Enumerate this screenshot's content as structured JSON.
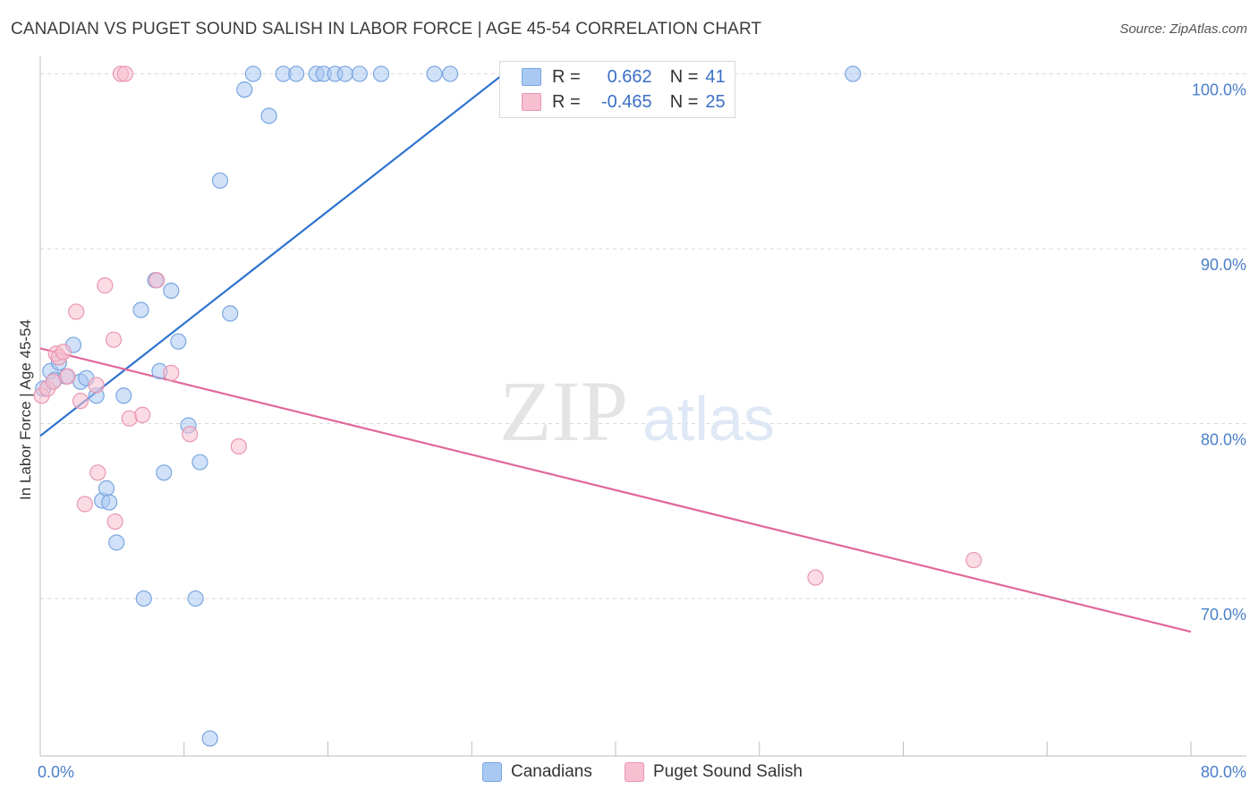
{
  "title": "CANADIAN VS PUGET SOUND SALISH IN LABOR FORCE | AGE 45-54 CORRELATION CHART",
  "source": "Source: ZipAtlas.com",
  "watermark": {
    "zip": "ZIP",
    "atlas": "atlas"
  },
  "colors": {
    "blue_fill": "#a9c8f2",
    "blue_stroke": "#7aa6e0",
    "blue_line": "#2f73d0",
    "pink_fill": "#f7bfd0",
    "pink_stroke": "#ea96b0",
    "pink_line": "#e0689a",
    "grid": "#d9d9d9",
    "tick_text": "#4a7fc8"
  },
  "legend": {
    "rows": [
      {
        "r_label": "R =",
        "r_value": "0.662",
        "n_label": "N =",
        "n_value": "41"
      },
      {
        "r_label": "R =",
        "r_value": "-0.465",
        "n_label": "N =",
        "n_value": "25"
      }
    ]
  },
  "bottom_legend": {
    "series1": "Canadians",
    "series2": "Puget Sound Salish"
  },
  "chart_data": {
    "type": "scatter",
    "title": "CANADIAN VS PUGET SOUND SALISH IN LABOR FORCE | AGE 45-54 CORRELATION CHART",
    "xlabel": "",
    "ylabel": "In Labor Force | Age 45-54",
    "xlim": [
      0,
      80
    ],
    "ylim": [
      61,
      101
    ],
    "x_tick_labels": [
      "0.0%",
      "80.0%"
    ],
    "y_ticks": [
      70,
      80,
      90,
      100
    ],
    "y_tick_labels": [
      "70.0%",
      "80.0%",
      "90.0%",
      "100.0%"
    ],
    "series": [
      {
        "name": "Canadians",
        "R": 0.662,
        "N": 41,
        "trend": {
          "x": [
            0,
            33
          ],
          "y": [
            79.3,
            100.5
          ]
        },
        "points": [
          [
            0.2,
            82.0
          ],
          [
            0.7,
            83.0
          ],
          [
            1.0,
            82.5
          ],
          [
            1.3,
            83.5
          ],
          [
            1.8,
            82.7
          ],
          [
            2.3,
            84.5
          ],
          [
            2.8,
            82.4
          ],
          [
            3.2,
            82.6
          ],
          [
            3.9,
            81.6
          ],
          [
            4.3,
            75.6
          ],
          [
            4.6,
            76.3
          ],
          [
            4.8,
            75.5
          ],
          [
            5.3,
            73.2
          ],
          [
            5.8,
            81.6
          ],
          [
            7.0,
            86.5
          ],
          [
            7.2,
            70.0
          ],
          [
            8.0,
            88.2
          ],
          [
            8.3,
            83.0
          ],
          [
            8.6,
            77.2
          ],
          [
            9.1,
            87.6
          ],
          [
            9.6,
            84.7
          ],
          [
            10.3,
            79.9
          ],
          [
            10.8,
            70.0
          ],
          [
            11.1,
            77.8
          ],
          [
            11.8,
            62.0
          ],
          [
            12.5,
            93.9
          ],
          [
            13.2,
            86.3
          ],
          [
            14.2,
            99.1
          ],
          [
            14.8,
            100.0
          ],
          [
            15.9,
            97.6
          ],
          [
            16.9,
            100.0
          ],
          [
            17.8,
            100.0
          ],
          [
            19.2,
            100.0
          ],
          [
            19.7,
            100.0
          ],
          [
            20.5,
            100.0
          ],
          [
            21.2,
            100.0
          ],
          [
            22.2,
            100.0
          ],
          [
            23.7,
            100.0
          ],
          [
            27.4,
            100.0
          ],
          [
            28.5,
            100.0
          ],
          [
            56.5,
            100.0
          ]
        ]
      },
      {
        "name": "Puget Sound Salish",
        "R": -0.465,
        "N": 25,
        "trend": {
          "x": [
            0,
            80
          ],
          "y": [
            84.3,
            68.1
          ]
        },
        "points": [
          [
            0.1,
            81.6
          ],
          [
            0.5,
            82.0
          ],
          [
            0.9,
            82.4
          ],
          [
            1.1,
            84.0
          ],
          [
            1.3,
            83.8
          ],
          [
            1.6,
            84.1
          ],
          [
            1.9,
            82.7
          ],
          [
            2.5,
            86.4
          ],
          [
            2.8,
            81.3
          ],
          [
            3.1,
            75.4
          ],
          [
            3.9,
            82.2
          ],
          [
            4.0,
            77.2
          ],
          [
            4.5,
            87.9
          ],
          [
            5.1,
            84.8
          ],
          [
            5.2,
            74.4
          ],
          [
            5.6,
            100.0
          ],
          [
            5.9,
            100.0
          ],
          [
            6.2,
            80.3
          ],
          [
            7.1,
            80.5
          ],
          [
            8.1,
            88.2
          ],
          [
            9.1,
            82.9
          ],
          [
            10.4,
            79.4
          ],
          [
            13.8,
            78.7
          ],
          [
            53.9,
            71.2
          ],
          [
            64.9,
            72.2
          ]
        ]
      }
    ]
  }
}
